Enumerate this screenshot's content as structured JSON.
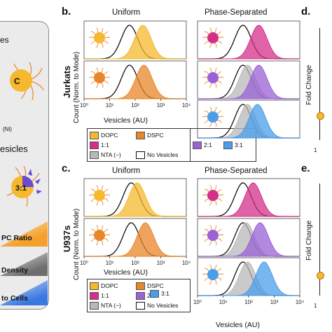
{
  "left_panel": {
    "texts": [
      "es",
      "C",
      "(Ni)",
      "esicles",
      "3:1",
      "PC Ratio",
      "Density",
      "to Cells"
    ]
  },
  "panels": {
    "b": {
      "letter": "b.",
      "row_label": "Jurkats",
      "title_left": "Uniform",
      "title_right": "Phase-Separated",
      "ylabel": "Count (Norm. to Mode)",
      "xlabel": "Vesicles (AU)"
    },
    "c": {
      "letter": "c.",
      "row_label": "U937s",
      "title_left": "Uniform",
      "title_right": "Phase-Separated",
      "ylabel": "Count (Norm. to Mode)",
      "xlabel_left": "Vesicles (AU)",
      "xlabel_right": "Vesicles (AU)"
    },
    "d": {
      "letter": "d.",
      "ylabel": "Fold Change"
    },
    "e": {
      "letter": "e.",
      "ylabel": "Fold Change"
    }
  },
  "x_ticks": [
    "10⁰",
    "10¹",
    "10²",
    "10³",
    "10⁴"
  ],
  "tick_one": "1",
  "legend": {
    "dopc": "DOPC",
    "dspc": "DSPC",
    "r11": "1:1",
    "r21": "2:1",
    "r31": "3:1",
    "nta": "NTA (−)",
    "none": "No Vesicles"
  },
  "colors": {
    "dopc": "#f5b82e",
    "dspc": "#e8862a",
    "r11": "#d4308a",
    "r21": "#9a62d6",
    "r31": "#4a9ee8",
    "nta": "#b8b8b8",
    "none": "#111111",
    "ratio_bar": "#f4a02c",
    "density_bar": "#8e8e8e",
    "cells_bar": "#3a78e0"
  },
  "chart_data": [
    {
      "type": "area",
      "panel": "b",
      "row": "Jurkats",
      "column": "Uniform",
      "sub": 1,
      "x_scale": "log",
      "xlim": [
        1,
        10000
      ],
      "series": [
        {
          "name": "No Vesicles",
          "peak_x": 60
        },
        {
          "name": "DOPC",
          "peak_x": 200
        }
      ]
    },
    {
      "type": "area",
      "panel": "b",
      "row": "Jurkats",
      "column": "Uniform",
      "sub": 2,
      "x_scale": "log",
      "xlim": [
        1,
        10000
      ],
      "series": [
        {
          "name": "No Vesicles",
          "peak_x": 60
        },
        {
          "name": "DSPC",
          "peak_x": 220
        }
      ]
    },
    {
      "type": "area",
      "panel": "b",
      "row": "Jurkats",
      "column": "Phase-Separated",
      "sub": 1,
      "x_scale": "log",
      "xlim": [
        1,
        10000
      ],
      "series": [
        {
          "name": "No Vesicles",
          "peak_x": 60
        },
        {
          "name": "1:1",
          "peak_x": 250
        }
      ]
    },
    {
      "type": "area",
      "panel": "b",
      "row": "Jurkats",
      "column": "Phase-Separated",
      "sub": 2,
      "x_scale": "log",
      "xlim": [
        1,
        10000
      ],
      "series": [
        {
          "name": "No Vesicles",
          "peak_x": 60
        },
        {
          "name": "NTA (−)",
          "peak_x": 90
        },
        {
          "name": "2:1",
          "peak_x": 250
        }
      ]
    },
    {
      "type": "area",
      "panel": "b",
      "row": "Jurkats",
      "column": "Phase-Separated",
      "sub": 3,
      "x_scale": "log",
      "xlim": [
        1,
        10000
      ],
      "series": [
        {
          "name": "No Vesicles",
          "peak_x": 60
        },
        {
          "name": "NTA (−)",
          "peak_x": 90
        },
        {
          "name": "3:1",
          "peak_x": 220
        }
      ]
    },
    {
      "type": "area",
      "panel": "c",
      "row": "U937s",
      "column": "Uniform",
      "sub": 1,
      "x_scale": "log",
      "xlim": [
        1,
        10000
      ],
      "series": [
        {
          "name": "No Vesicles",
          "peak_x": 70
        },
        {
          "name": "DOPC",
          "peak_x": 120
        }
      ]
    },
    {
      "type": "area",
      "panel": "c",
      "row": "U937s",
      "column": "Uniform",
      "sub": 2,
      "x_scale": "log",
      "xlim": [
        1,
        10000
      ],
      "series": [
        {
          "name": "No Vesicles",
          "peak_x": 70
        },
        {
          "name": "DSPC",
          "peak_x": 250
        }
      ]
    },
    {
      "type": "area",
      "panel": "c",
      "row": "U937s",
      "column": "Phase-Separated",
      "sub": 1,
      "x_scale": "log",
      "xlim": [
        1,
        10000
      ],
      "series": [
        {
          "name": "No Vesicles",
          "peak_x": 60
        },
        {
          "name": "1:1",
          "peak_x": 150
        }
      ]
    },
    {
      "type": "area",
      "panel": "c",
      "row": "U937s",
      "column": "Phase-Separated",
      "sub": 2,
      "x_scale": "log",
      "xlim": [
        1,
        10000
      ],
      "series": [
        {
          "name": "No Vesicles",
          "peak_x": 60
        },
        {
          "name": "NTA (−)",
          "peak_x": 80
        },
        {
          "name": "2:1",
          "peak_x": 280
        }
      ]
    },
    {
      "type": "area",
      "panel": "c",
      "row": "U937s",
      "column": "Phase-Separated",
      "sub": 3,
      "x_scale": "log",
      "xlim": [
        1,
        10000
      ],
      "series": [
        {
          "name": "No Vesicles",
          "peak_x": 60
        },
        {
          "name": "NTA (−)",
          "peak_x": 90
        },
        {
          "name": "3:1",
          "peak_x": 400
        }
      ]
    }
  ]
}
